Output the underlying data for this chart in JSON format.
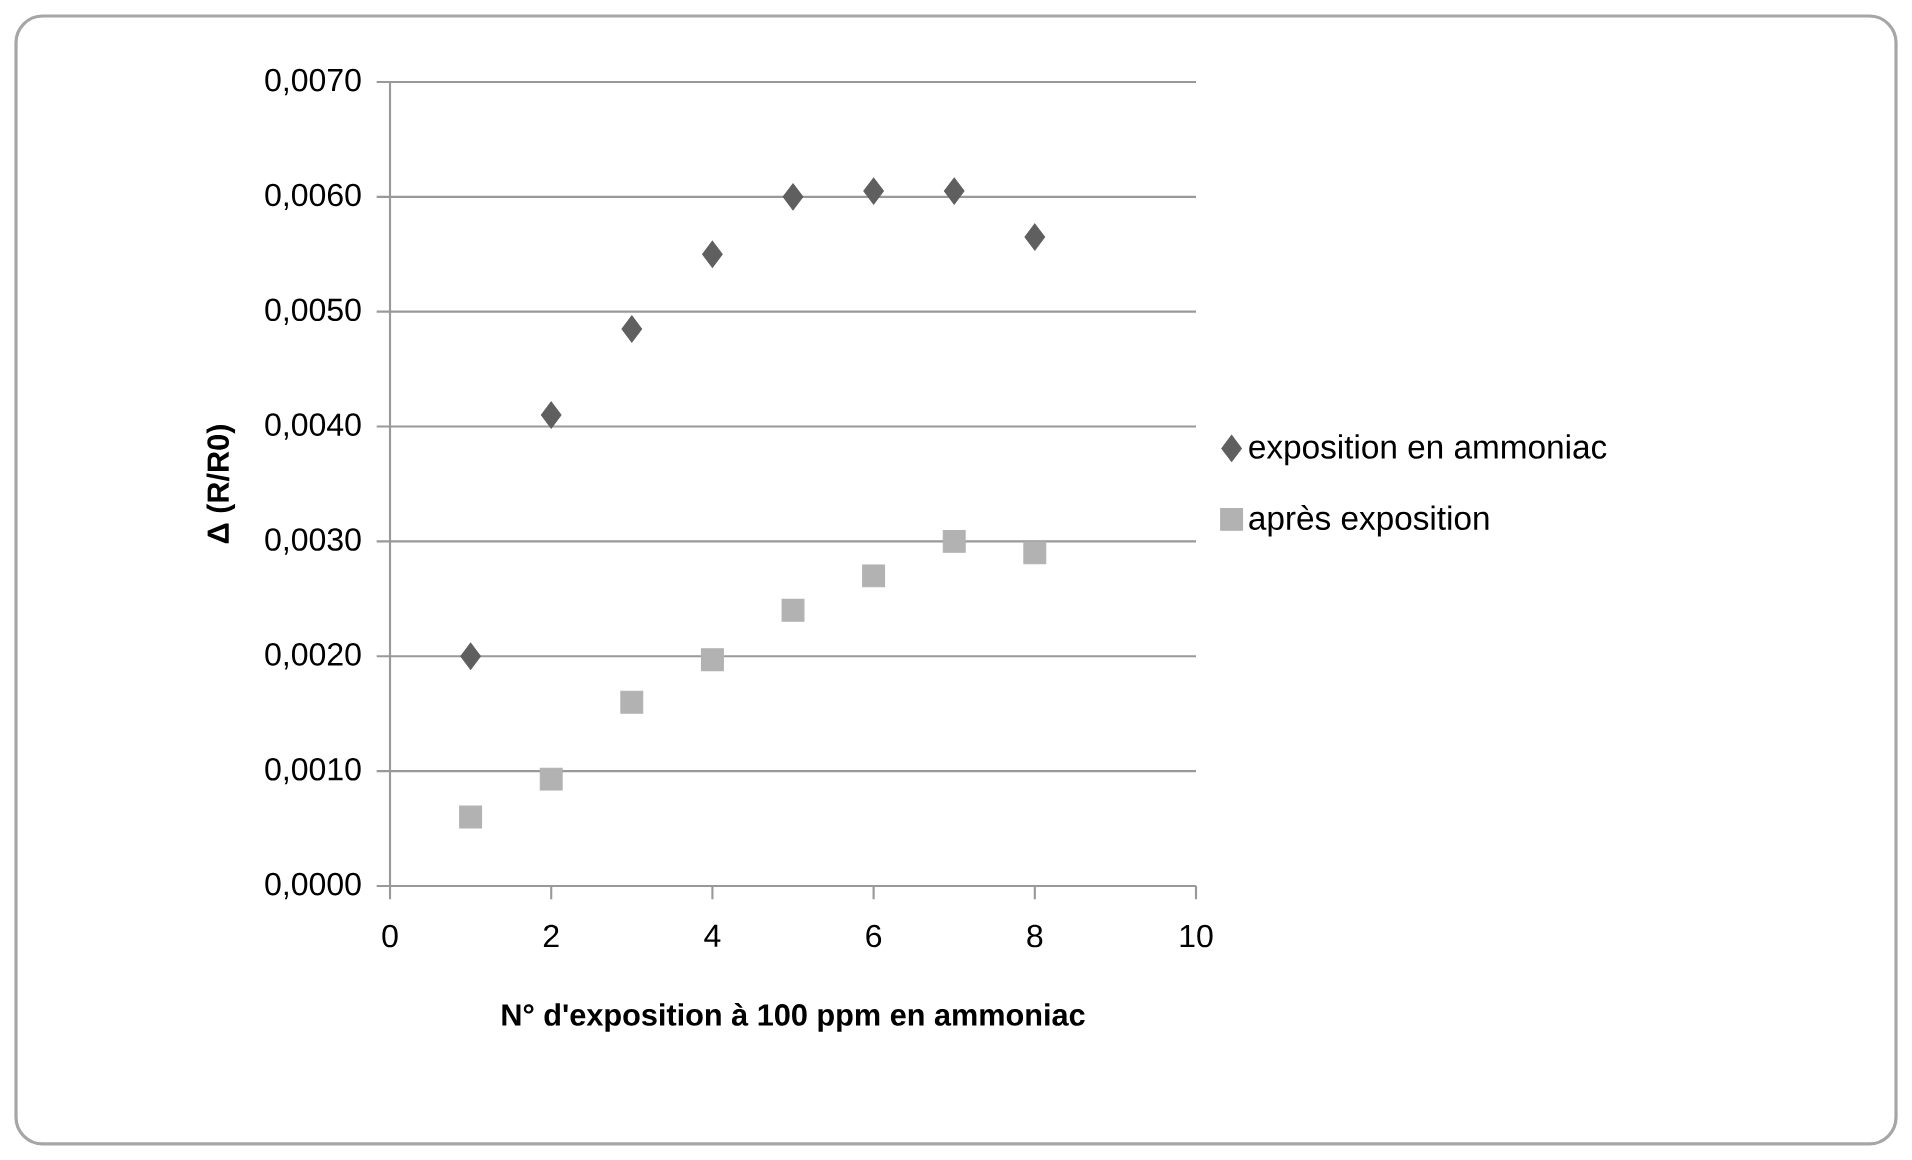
{
  "chart_data": {
    "type": "scatter",
    "xlabel": "N° d'exposition à 100 ppm en ammoniac",
    "ylabel": "Δ (R/R0)",
    "x": [
      1,
      2,
      3,
      4,
      5,
      6,
      7,
      8
    ],
    "series": [
      {
        "name": "exposition en ammoniac",
        "color": "#5f5f5f",
        "marker": "diamond",
        "values": [
          0.002,
          0.0041,
          0.00485,
          0.0055,
          0.006,
          0.00605,
          0.00605,
          0.00565
        ]
      },
      {
        "name": "après exposition",
        "color": "#b2b2b2",
        "marker": "square",
        "values": [
          0.0006,
          0.00093,
          0.0016,
          0.00197,
          0.0024,
          0.0027,
          0.003,
          0.0029
        ]
      }
    ],
    "xlim": [
      0,
      10
    ],
    "xticks": [
      0,
      2,
      4,
      6,
      8,
      10
    ],
    "ylim": [
      0,
      0.007
    ],
    "yticks": [
      {
        "value": 0,
        "label": "0,0000"
      },
      {
        "value": 0.001,
        "label": "0,0010"
      },
      {
        "value": 0.002,
        "label": "0,0020"
      },
      {
        "value": 0.003,
        "label": "0,0030"
      },
      {
        "value": 0.004,
        "label": "0,0040"
      },
      {
        "value": 0.005,
        "label": "0,0050"
      },
      {
        "value": 0.006,
        "label": "0,0060"
      },
      {
        "value": 0.007,
        "label": "0,0070"
      }
    ],
    "grid": "y",
    "legend": "right"
  }
}
